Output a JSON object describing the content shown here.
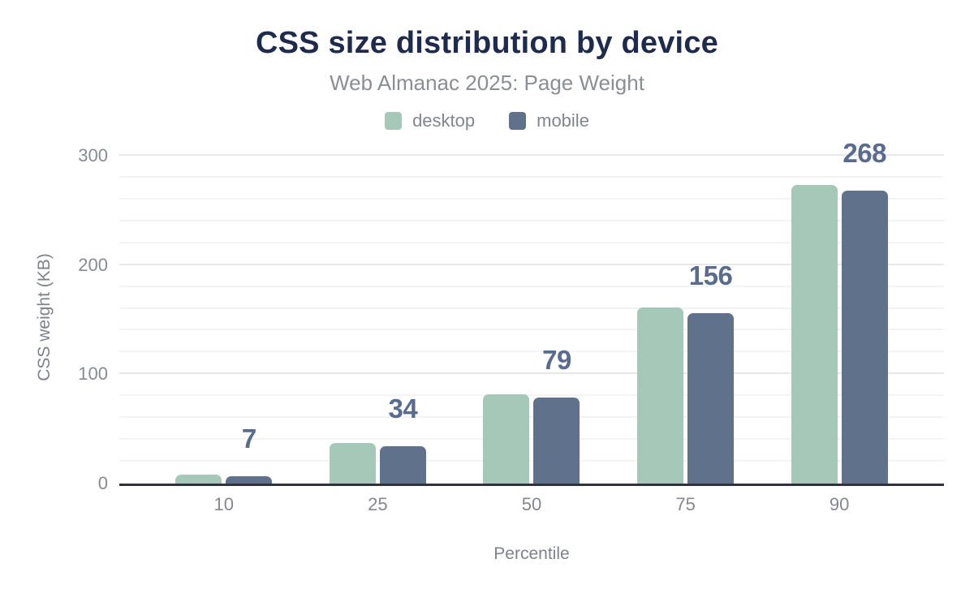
{
  "chart_data": {
    "type": "bar",
    "title": "CSS size distribution by device",
    "subtitle": "Web Almanac 2025: Page Weight",
    "xlabel": "Percentile",
    "ylabel": "CSS weight (KB)",
    "categories": [
      "10",
      "25",
      "50",
      "75",
      "90"
    ],
    "series": [
      {
        "name": "desktop",
        "color": "#a6c8b8",
        "values": [
          8,
          37,
          82,
          161,
          273
        ],
        "labels_shown": false
      },
      {
        "name": "mobile",
        "color": "#60718c",
        "values": [
          7,
          34,
          79,
          156,
          268
        ],
        "labels_shown": true
      }
    ],
    "data_labels": [
      "7",
      "34",
      "79",
      "156",
      "268"
    ],
    "y_ticks": [
      0,
      100,
      200,
      300
    ],
    "ylim": [
      0,
      308
    ],
    "grid_step": 20,
    "grid": "on",
    "legend_position": "top",
    "colors": {
      "title": "#1f2b4d",
      "subtitle": "#8a8e95",
      "legend_text": "#82868e",
      "tick_text": "#878b92",
      "axis_title_text": "#7d828c",
      "data_label": "#5a6c8e",
      "grid_minor": "#f3f3f5",
      "grid_major": "#e8e8eb",
      "axis_line": "#32323c",
      "background": "#ffffff"
    }
  }
}
